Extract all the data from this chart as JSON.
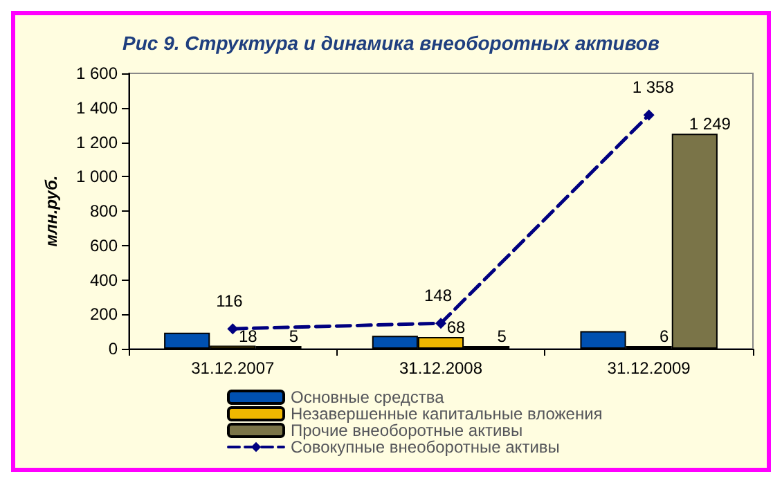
{
  "chart_data": {
    "type": "bar",
    "title": "Рис 9. Структура и динамика внеоборотных активов",
    "ylabel": "млн.руб.",
    "categories": [
      "31.12.2007",
      "31.12.2008",
      "31.12.2009"
    ],
    "series": [
      {
        "name": "Основные средства",
        "color": "#0050b0",
        "values": [
          93,
          75,
          103
        ],
        "value_labels": [
          null,
          null,
          null
        ]
      },
      {
        "name": "Незавершенные капитальные вложения",
        "color": "#f0b800",
        "values": [
          18,
          68,
          6
        ],
        "value_labels": [
          "18",
          "68",
          "6"
        ]
      },
      {
        "name": "Прочие внеоборотные активы",
        "color": "#7a7448",
        "values": [
          5,
          5,
          1249
        ],
        "value_labels": [
          "5",
          "5",
          "1 249"
        ]
      },
      {
        "name": "Совокупные внеоборотные активы",
        "type": "line",
        "color": "#000080",
        "values": [
          116,
          148,
          1358
        ],
        "value_labels": [
          "116",
          "148",
          "1 358"
        ],
        "marker": "diamond",
        "line_style": "dashed"
      }
    ],
    "ylim": [
      0,
      1600
    ],
    "yticks": [
      0,
      {
        "value": 200,
        "label": "200"
      },
      {
        "value": 400,
        "label": "400"
      },
      {
        "value": 600,
        "label": "600"
      },
      {
        "value": 800,
        "label": "800"
      },
      {
        "value": 1000,
        "label": "1 000"
      },
      {
        "value": 1200,
        "label": "1 200"
      },
      {
        "value": 1400,
        "label": "1 400"
      },
      {
        "value": 1600,
        "label": "1 600"
      }
    ],
    "grid": false,
    "legend": "bottom"
  }
}
